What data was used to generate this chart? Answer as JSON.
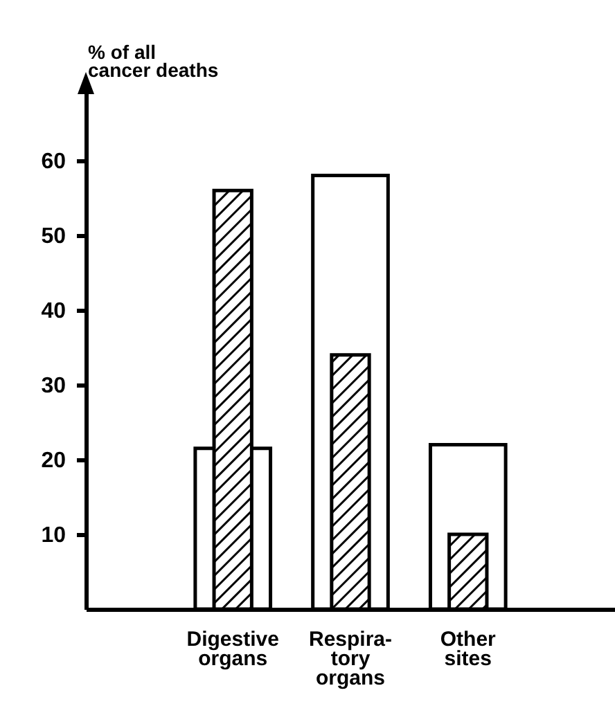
{
  "chart_data": {
    "type": "bar",
    "ylabel": "% of all\ncancer deaths",
    "categories": [
      "Digestive\norgans",
      "Respira-\ntory\norgans",
      "Other\nsites"
    ],
    "series": [
      {
        "color": "#ffffff",
        "values": [
          21.5,
          58,
          22
        ]
      },
      {
        "color": "#000000",
        "values": [
          56,
          34,
          10
        ]
      }
    ],
    "ylim": [
      0,
      70
    ],
    "yticks": [
      10,
      20,
      30,
      40,
      50,
      60
    ]
  }
}
